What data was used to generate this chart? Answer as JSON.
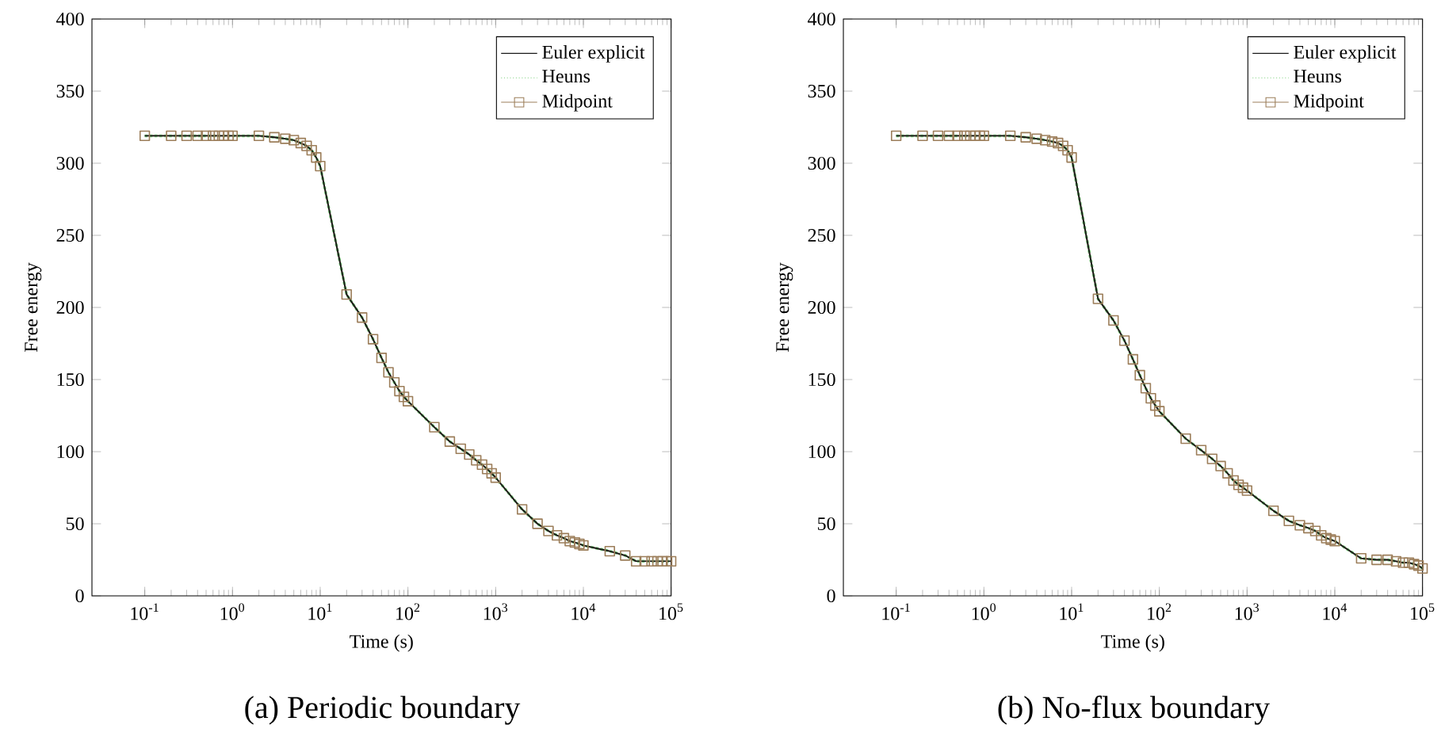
{
  "chart_data": [
    {
      "type": "line",
      "annotations": [
        "(a) Periodic boundary"
      ],
      "xlabel": "Time (s)",
      "ylabel": "Free energy",
      "log": "x",
      "legend": "top right",
      "grid": false,
      "xlim": [
        0.025,
        100000
      ],
      "ylim": [
        0,
        400
      ],
      "xticks": [
        {
          "value": 0.1,
          "label": "10$^{-1}$"
        },
        {
          "value": 1,
          "label": "10$^{0}$"
        },
        {
          "value": 10,
          "label": "10$^{1}$"
        },
        {
          "value": 100,
          "label": "10$^{2}$"
        },
        {
          "value": 1000,
          "label": "10$^{3}$"
        },
        {
          "value": 10000,
          "label": "10$^{4}$"
        },
        {
          "value": 100000,
          "label": "10$^{5}$"
        }
      ],
      "yticks": [
        0,
        50,
        100,
        150,
        200,
        250,
        300,
        350,
        400
      ],
      "x": [
        0.1,
        0.2,
        0.3,
        0.4,
        0.5,
        0.6,
        0.7,
        0.8,
        0.9,
        1,
        2,
        3,
        4,
        5,
        6,
        7,
        8,
        9,
        10,
        20,
        30,
        40,
        50,
        60,
        70,
        80,
        90,
        100,
        200,
        300,
        400,
        500,
        600,
        700,
        800,
        900,
        1000,
        2000,
        3000,
        4000,
        5000,
        6000,
        7000,
        8000,
        9000,
        10000,
        20000,
        30000,
        40000,
        50000,
        60000,
        70000,
        80000,
        90000,
        100000
      ],
      "series": [
        {
          "name": "Euler explicit",
          "color": "#1a1a1a",
          "line_style": "solid",
          "marker": "none",
          "values": [
            319,
            319,
            319,
            319,
            319,
            319,
            319,
            319,
            319,
            319,
            319,
            318,
            317,
            316,
            314,
            312,
            309,
            304,
            298,
            209,
            193,
            178,
            165,
            155,
            148,
            142,
            138,
            135,
            117,
            107,
            102,
            98,
            94,
            91,
            88,
            85,
            82,
            60,
            50,
            45,
            42,
            40,
            38,
            37,
            36,
            35,
            31,
            28,
            24,
            24,
            24,
            24,
            24,
            24,
            24
          ]
        },
        {
          "name": "Heuns",
          "color": "#7ccf7c",
          "line_style": "dotted",
          "marker": "none",
          "values": [
            319,
            319,
            319,
            319,
            319,
            319,
            319,
            319,
            319,
            319,
            319,
            318,
            317,
            316,
            314,
            312,
            309,
            304,
            298,
            209,
            193,
            178,
            165,
            155,
            148,
            142,
            138,
            135,
            117,
            107,
            102,
            98,
            94,
            91,
            88,
            85,
            82,
            60,
            50,
            45,
            42,
            40,
            38,
            37,
            36,
            35,
            31,
            28,
            24,
            24,
            24,
            24,
            24,
            24,
            24
          ]
        },
        {
          "name": "Midpoint",
          "color": "#9c7e5a",
          "line_style": "solid",
          "marker": "square",
          "values": [
            319,
            319,
            319,
            319,
            319,
            319,
            319,
            319,
            319,
            319,
            319,
            318,
            317,
            316,
            314,
            312,
            309,
            304,
            298,
            209,
            193,
            178,
            165,
            155,
            148,
            142,
            138,
            135,
            117,
            107,
            102,
            98,
            94,
            91,
            88,
            85,
            82,
            60,
            50,
            45,
            42,
            40,
            38,
            37,
            36,
            35,
            31,
            28,
            24,
            24,
            24,
            24,
            24,
            24,
            24
          ]
        }
      ]
    },
    {
      "type": "line",
      "annotations": [
        "(b) No-flux boundary"
      ],
      "xlabel": "Time (s)",
      "ylabel": "Free energy",
      "log": "x",
      "legend": "top right",
      "grid": false,
      "xlim": [
        0.025,
        100000
      ],
      "ylim": [
        0,
        400
      ],
      "xticks": [
        {
          "value": 0.1,
          "label": "10$^{-1}$"
        },
        {
          "value": 1,
          "label": "10$^{0}$"
        },
        {
          "value": 10,
          "label": "10$^{1}$"
        },
        {
          "value": 100,
          "label": "10$^{2}$"
        },
        {
          "value": 1000,
          "label": "10$^{3}$"
        },
        {
          "value": 10000,
          "label": "10$^{4}$"
        },
        {
          "value": 100000,
          "label": "10$^{5}$"
        }
      ],
      "yticks": [
        0,
        50,
        100,
        150,
        200,
        250,
        300,
        350,
        400
      ],
      "x": [
        0.1,
        0.2,
        0.3,
        0.4,
        0.5,
        0.6,
        0.7,
        0.8,
        0.9,
        1,
        2,
        3,
        4,
        5,
        6,
        7,
        8,
        9,
        10,
        20,
        30,
        40,
        50,
        60,
        70,
        80,
        90,
        100,
        200,
        300,
        400,
        500,
        600,
        700,
        800,
        900,
        1000,
        2000,
        3000,
        4000,
        5000,
        6000,
        7000,
        8000,
        9000,
        10000,
        20000,
        30000,
        40000,
        50000,
        60000,
        70000,
        80000,
        90000,
        100000
      ],
      "series": [
        {
          "name": "Euler explicit",
          "color": "#1a1a1a",
          "line_style": "solid",
          "marker": "none",
          "values": [
            319,
            319,
            319,
            319,
            319,
            319,
            319,
            319,
            319,
            319,
            319,
            318,
            317,
            316,
            315,
            314,
            312,
            309,
            304,
            206,
            191,
            177,
            164,
            153,
            144,
            137,
            132,
            128,
            109,
            101,
            95,
            90,
            85,
            80,
            77,
            75,
            73,
            59,
            52,
            49,
            47,
            45,
            42,
            40,
            39,
            38,
            26,
            25,
            25,
            24,
            23,
            23,
            22,
            21,
            19
          ]
        },
        {
          "name": "Heuns",
          "color": "#7ccf7c",
          "line_style": "dotted",
          "marker": "none",
          "values": [
            319,
            319,
            319,
            319,
            319,
            319,
            319,
            319,
            319,
            319,
            319,
            318,
            317,
            316,
            315,
            314,
            312,
            309,
            304,
            206,
            191,
            177,
            164,
            153,
            144,
            137,
            132,
            128,
            109,
            101,
            95,
            90,
            85,
            80,
            77,
            75,
            73,
            59,
            52,
            49,
            47,
            45,
            42,
            40,
            39,
            38,
            26,
            25,
            25,
            24,
            23,
            23,
            22,
            21,
            19
          ]
        },
        {
          "name": "Midpoint",
          "color": "#9c7e5a",
          "line_style": "solid",
          "marker": "square",
          "values": [
            319,
            319,
            319,
            319,
            319,
            319,
            319,
            319,
            319,
            319,
            319,
            318,
            317,
            316,
            315,
            314,
            312,
            309,
            304,
            206,
            191,
            177,
            164,
            153,
            144,
            137,
            132,
            128,
            109,
            101,
            95,
            90,
            85,
            80,
            77,
            75,
            73,
            59,
            52,
            49,
            47,
            45,
            42,
            40,
            39,
            38,
            26,
            25,
            25,
            24,
            23,
            23,
            22,
            21,
            19
          ]
        }
      ]
    }
  ]
}
